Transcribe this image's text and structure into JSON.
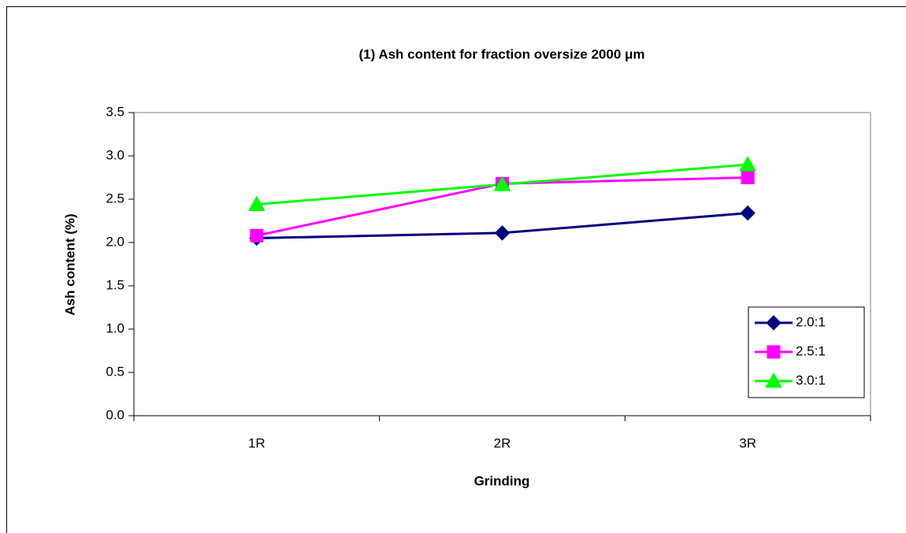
{
  "chart_data": {
    "type": "line",
    "title": "(1) Ash content for fraction oversize 2000 μm",
    "xlabel": "Grinding",
    "ylabel": "Ash content (%)",
    "categories": [
      "1R",
      "2R",
      "3R"
    ],
    "series": [
      {
        "name": "2.0:1",
        "color": "#000080",
        "marker": "diamond",
        "values": [
          2.05,
          2.11,
          2.34
        ]
      },
      {
        "name": "2.5:1",
        "color": "#ff00ff",
        "marker": "square",
        "values": [
          2.08,
          2.68,
          2.75
        ]
      },
      {
        "name": "3.0:1",
        "color": "#00ff00",
        "marker": "triangle",
        "values": [
          2.44,
          2.67,
          2.9
        ]
      }
    ],
    "ylim": [
      0,
      3.5
    ],
    "yticks": [
      {
        "value": 0,
        "label": "0.0"
      },
      0.5,
      {
        "value": 1,
        "label": "1.0"
      },
      1.5,
      {
        "value": 2,
        "label": "2.0"
      },
      2.5,
      {
        "value": 3,
        "label": "3.0"
      },
      3.5
    ],
    "grid": false,
    "legend": "lower right"
  }
}
